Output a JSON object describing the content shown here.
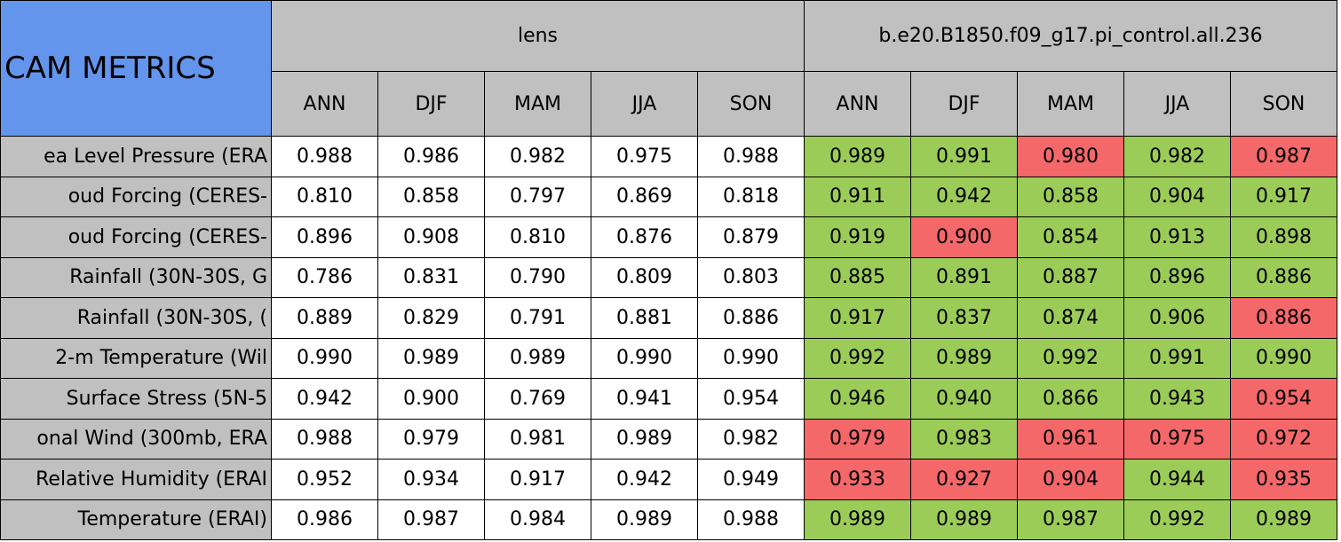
{
  "header": {
    "title": "CAM METRICS",
    "groups": [
      "lens",
      "b.e20.B1850.f09_g17.pi_control.all.236"
    ],
    "seasons": [
      "ANN",
      "DJF",
      "MAM",
      "JJA",
      "SON"
    ]
  },
  "colors": {
    "header": "#c0c0c0",
    "title": "#6495ed",
    "label": "#c0c0c0",
    "plain": "#ffffff",
    "better": "#9ccc58",
    "worse": "#f4686a"
  },
  "table": {
    "rows": [
      {
        "label": "ea Level Pressure (ERA",
        "lens": [
          "0.988",
          "0.986",
          "0.982",
          "0.975",
          "0.988"
        ],
        "control": [
          "0.989",
          "0.991",
          "0.980",
          "0.982",
          "0.987"
        ],
        "status": [
          "better",
          "better",
          "worse",
          "better",
          "worse"
        ]
      },
      {
        "label": "oud Forcing (CERES-",
        "lens": [
          "0.810",
          "0.858",
          "0.797",
          "0.869",
          "0.818"
        ],
        "control": [
          "0.911",
          "0.942",
          "0.858",
          "0.904",
          "0.917"
        ],
        "status": [
          "better",
          "better",
          "better",
          "better",
          "better"
        ]
      },
      {
        "label": "oud Forcing (CERES-",
        "lens": [
          "0.896",
          "0.908",
          "0.810",
          "0.876",
          "0.879"
        ],
        "control": [
          "0.919",
          "0.900",
          "0.854",
          "0.913",
          "0.898"
        ],
        "status": [
          "better",
          "worse",
          "better",
          "better",
          "better"
        ]
      },
      {
        "label": "Rainfall (30N-30S, G",
        "lens": [
          "0.786",
          "0.831",
          "0.790",
          "0.809",
          "0.803"
        ],
        "control": [
          "0.885",
          "0.891",
          "0.887",
          "0.896",
          "0.886"
        ],
        "status": [
          "better",
          "better",
          "better",
          "better",
          "better"
        ]
      },
      {
        "label": "Rainfall (30N-30S, (",
        "lens": [
          "0.889",
          "0.829",
          "0.791",
          "0.881",
          "0.886"
        ],
        "control": [
          "0.917",
          "0.837",
          "0.874",
          "0.906",
          "0.886"
        ],
        "status": [
          "better",
          "better",
          "better",
          "better",
          "worse"
        ]
      },
      {
        "label": "2-m Temperature (Wil",
        "lens": [
          "0.990",
          "0.989",
          "0.989",
          "0.990",
          "0.990"
        ],
        "control": [
          "0.992",
          "0.989",
          "0.992",
          "0.991",
          "0.990"
        ],
        "status": [
          "better",
          "better",
          "better",
          "better",
          "better"
        ]
      },
      {
        "label": "Surface Stress (5N-5",
        "lens": [
          "0.942",
          "0.900",
          "0.769",
          "0.941",
          "0.954"
        ],
        "control": [
          "0.946",
          "0.940",
          "0.866",
          "0.943",
          "0.954"
        ],
        "status": [
          "better",
          "better",
          "better",
          "better",
          "worse"
        ]
      },
      {
        "label": "onal Wind (300mb, ERA",
        "lens": [
          "0.988",
          "0.979",
          "0.981",
          "0.989",
          "0.982"
        ],
        "control": [
          "0.979",
          "0.983",
          "0.961",
          "0.975",
          "0.972"
        ],
        "status": [
          "worse",
          "better",
          "worse",
          "worse",
          "worse"
        ]
      },
      {
        "label": "Relative Humidity (ERAI",
        "lens": [
          "0.952",
          "0.934",
          "0.917",
          "0.942",
          "0.949"
        ],
        "control": [
          "0.933",
          "0.927",
          "0.904",
          "0.944",
          "0.935"
        ],
        "status": [
          "worse",
          "worse",
          "worse",
          "better",
          "worse"
        ]
      },
      {
        "label": "Temperature (ERAI)",
        "lens": [
          "0.986",
          "0.987",
          "0.984",
          "0.989",
          "0.988"
        ],
        "control": [
          "0.989",
          "0.989",
          "0.987",
          "0.992",
          "0.989"
        ],
        "status": [
          "better",
          "better",
          "better",
          "better",
          "better"
        ]
      }
    ]
  }
}
